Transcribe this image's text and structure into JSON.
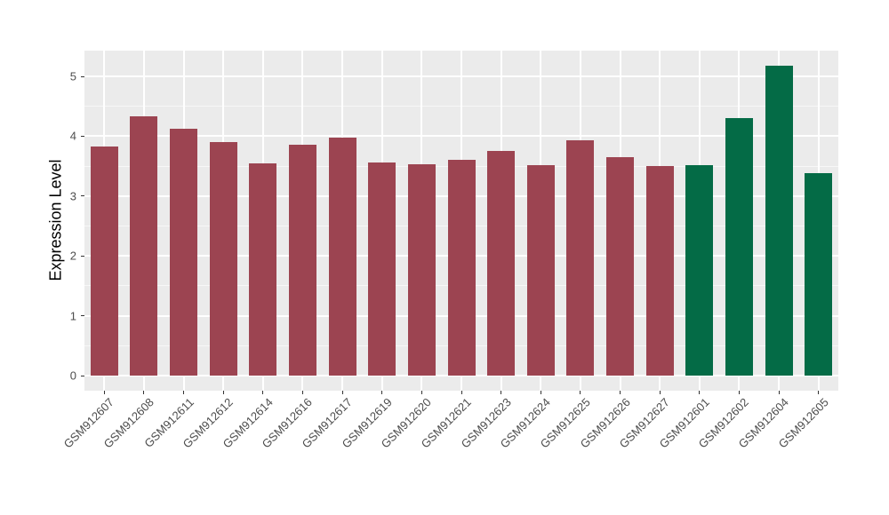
{
  "chart_data": {
    "type": "bar",
    "title": "",
    "ylabel": "Expression Level",
    "xlabel": "",
    "ylim": [
      0,
      5.4
    ],
    "yticks": [
      0,
      1,
      2,
      3,
      4,
      5
    ],
    "grid": "on",
    "legend_position": "none",
    "categories": [
      "GSM912607",
      "GSM912608",
      "GSM912611",
      "GSM912612",
      "GSM912614",
      "GSM912616",
      "GSM912617",
      "GSM912619",
      "GSM912620",
      "GSM912621",
      "GSM912623",
      "GSM912624",
      "GSM912625",
      "GSM912626",
      "GSM912627",
      "GSM912601",
      "GSM912602",
      "GSM912604",
      "GSM912605"
    ],
    "values": [
      3.83,
      4.33,
      4.13,
      3.9,
      3.55,
      3.86,
      3.98,
      3.56,
      3.53,
      3.6,
      3.76,
      3.51,
      3.93,
      3.65,
      3.5,
      3.52,
      4.31,
      5.18,
      3.38
    ],
    "bar_colors": [
      "#9C4451",
      "#9C4451",
      "#9C4451",
      "#9C4451",
      "#9C4451",
      "#9C4451",
      "#9C4451",
      "#9C4451",
      "#9C4451",
      "#9C4451",
      "#9C4451",
      "#9C4451",
      "#9C4451",
      "#9C4451",
      "#9C4451",
      "#046B46",
      "#046B46",
      "#046B46",
      "#046B46"
    ],
    "colors": {
      "group_main": "#9C4451",
      "group_highlight": "#046B46",
      "panel_background": "#EBEBEB",
      "gridline": "#FFFFFF",
      "axis_text": "#4D4D4D",
      "tick_mark": "#333333"
    }
  }
}
